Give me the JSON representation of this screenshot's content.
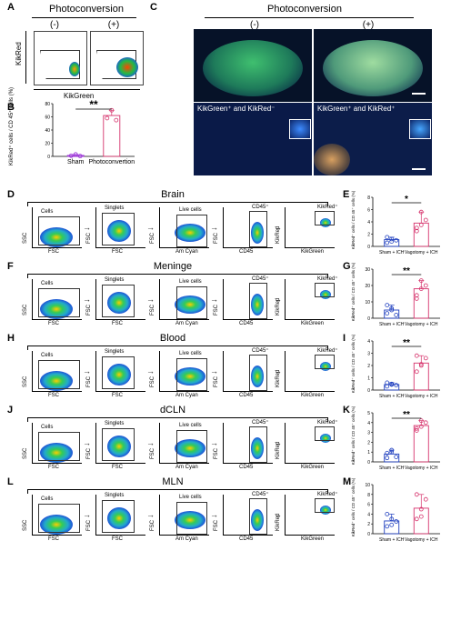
{
  "panels": {
    "A": {
      "letter": "A",
      "title": "Photoconversion",
      "neg": "(-)",
      "pos": "(+)",
      "xlabel": "KikGreen",
      "ylabel": "KikRed"
    },
    "B": {
      "letter": "B",
      "ylabel": "KikRed⁺ cells\n/ CD 45⁺ cells (%)",
      "sig": "**",
      "categories": [
        "Sham",
        "Photoconvertion"
      ]
    },
    "C": {
      "letter": "C",
      "title": "Photoconversion",
      "neg": "(-)",
      "pos": "(+)",
      "inset_neg": "KikGreen⁺ and KikRed⁻",
      "inset_pos": "KikGreen⁺ and KikRed⁺"
    },
    "D": {
      "letter": "D",
      "title": "Brain"
    },
    "E": {
      "letter": "E",
      "sig": "*"
    },
    "F": {
      "letter": "F",
      "title": "Meninge"
    },
    "G": {
      "letter": "G",
      "sig": "**"
    },
    "H": {
      "letter": "H",
      "title": "Blood"
    },
    "I": {
      "letter": "I",
      "sig": "**"
    },
    "J": {
      "letter": "J",
      "title": "dCLN"
    },
    "K": {
      "letter": "K",
      "sig": "**"
    },
    "L": {
      "letter": "L",
      "title": "MLN"
    },
    "M": {
      "letter": "M",
      "sig": ""
    }
  },
  "gating": {
    "ssc": "SSC",
    "fsc": "FSC",
    "amcyan": "Am Cyan",
    "cd45": "CD45",
    "kikred": "KikRed",
    "kikgreen": "KikGreen",
    "cells": "Cells",
    "singlets": "Singlets",
    "live": "Live cells",
    "cd45pos": "CD45⁺",
    "kikredpos": "KikRed⁺"
  },
  "bar_labels": {
    "ylabel": "KikRed⁺ cells\n/ CD 45⁺ cells (%)",
    "sham": "Sham + ICH",
    "vago": "Vagotomy + ICH"
  },
  "chart_data": [
    {
      "type": "bar",
      "panel": "B",
      "categories": [
        "Sham",
        "Photoconvertion"
      ],
      "values": [
        1.5,
        62
      ],
      "ylim": [
        0,
        80
      ],
      "yticks": [
        0,
        20,
        40,
        60,
        80
      ],
      "points": [
        [
          1,
          3,
          0.5
        ],
        [
          58,
          70,
          55
        ]
      ],
      "colors": [
        "#9b30d9",
        "#d6336c"
      ]
    },
    {
      "type": "bar",
      "panel": "E",
      "categories": [
        "Sham + ICH",
        "Vagotomy + ICH"
      ],
      "values": [
        1.1,
        3.8
      ],
      "ylim": [
        0,
        8
      ],
      "yticks": [
        0,
        2,
        4,
        6,
        8
      ],
      "points": [
        [
          0.6,
          1.2,
          1.0,
          1.5,
          0.8
        ],
        [
          2.5,
          3.5,
          4.3,
          3.0,
          5.6
        ]
      ],
      "colors": [
        "#1f3fbf",
        "#d6336c"
      ]
    },
    {
      "type": "bar",
      "panel": "G",
      "categories": [
        "Sham + ICH",
        "Vagotomy + ICH"
      ],
      "values": [
        5,
        18
      ],
      "ylim": [
        0,
        30
      ],
      "yticks": [
        0,
        10,
        20,
        30
      ],
      "points": [
        [
          3,
          6,
          2,
          8,
          5
        ],
        [
          14,
          18,
          20,
          12,
          23
        ]
      ],
      "colors": [
        "#1f3fbf",
        "#d6336c"
      ]
    },
    {
      "type": "bar",
      "panel": "I",
      "categories": [
        "Sham + ICH",
        "Vagotomy + ICH"
      ],
      "values": [
        0.45,
        2.2
      ],
      "ylim": [
        0,
        4
      ],
      "yticks": [
        0,
        1,
        2,
        3,
        4
      ],
      "points": [
        [
          0.3,
          0.5,
          0.4,
          0.6,
          0.45
        ],
        [
          1.5,
          2.0,
          2.6,
          2.8,
          2.1
        ]
      ],
      "colors": [
        "#1f3fbf",
        "#d6336c"
      ]
    },
    {
      "type": "bar",
      "panel": "K",
      "categories": [
        "Sham + ICH",
        "Vagotomy + ICH"
      ],
      "values": [
        0.8,
        3.7
      ],
      "ylim": [
        0,
        5
      ],
      "yticks": [
        0,
        1,
        2,
        3,
        4,
        5
      ],
      "points": [
        [
          0.4,
          1.2,
          0.5,
          0.9,
          1.0
        ],
        [
          3.2,
          3.6,
          4.0,
          3.4,
          4.2
        ]
      ],
      "colors": [
        "#1f3fbf",
        "#d6336c"
      ]
    },
    {
      "type": "bar",
      "panel": "M",
      "categories": [
        "Sham + ICH",
        "Vagotomy + ICH"
      ],
      "values": [
        2.6,
        5.2
      ],
      "ylim": [
        0,
        10
      ],
      "yticks": [
        0,
        2,
        4,
        6,
        8,
        10
      ],
      "points": [
        [
          1.5,
          3.0,
          2.5,
          4.0,
          1.8
        ],
        [
          3,
          5,
          7,
          8,
          3.5
        ]
      ],
      "colors": [
        "#1f3fbf",
        "#d6336c"
      ]
    }
  ]
}
